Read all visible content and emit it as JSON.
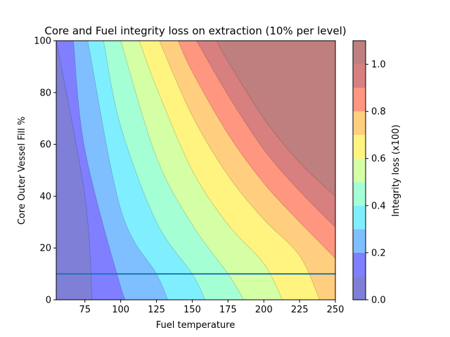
{
  "chart_data": {
    "type": "contourf",
    "title": "Core and Fuel integrity loss on extraction (10% per level)",
    "xlabel": "Fuel temperature",
    "ylabel": "Core Outer Vessel Fill %",
    "xlim": [
      55,
      250
    ],
    "ylim": [
      0,
      100
    ],
    "x_ticks": [
      75,
      100,
      125,
      150,
      175,
      200,
      225,
      250
    ],
    "y_ticks": [
      0,
      20,
      40,
      60,
      80,
      100
    ],
    "colorbar": {
      "label": "Integrity loss (x100)",
      "ticks": [
        0.0,
        0.2,
        0.4,
        0.6,
        0.8,
        1.0
      ],
      "tick_labels": [
        "0.0",
        "0.2",
        "0.4",
        "0.6",
        "0.8",
        "1.0"
      ],
      "levels": [
        0.0,
        0.1,
        0.2,
        0.3,
        0.4,
        0.5,
        0.6,
        0.7,
        0.8,
        0.9,
        1.0,
        1.1
      ],
      "colors": [
        "#7f7fd8",
        "#7f7fff",
        "#7fbfff",
        "#7fefff",
        "#a5ffd5",
        "#d5ffa5",
        "#fff47f",
        "#ffcf7f",
        "#ff967f",
        "#d87f7f",
        "#bf7f7f"
      ]
    },
    "contour_boundaries": [
      {
        "level": 0.1,
        "points": [
          [
            55,
            100
          ],
          [
            75,
            40
          ],
          [
            80,
            0
          ]
        ]
      },
      {
        "level": 0.2,
        "points": [
          [
            67,
            100
          ],
          [
            75,
            58
          ],
          [
            100,
            5
          ],
          [
            106,
            0
          ]
        ]
      },
      {
        "level": 0.3,
        "points": [
          [
            77,
            100
          ],
          [
            100,
            35
          ],
          [
            125,
            10
          ],
          [
            133,
            0
          ]
        ]
      },
      {
        "level": 0.4,
        "points": [
          [
            88,
            100
          ],
          [
            100,
            67
          ],
          [
            125,
            30
          ],
          [
            150,
            10
          ],
          [
            159,
            0
          ]
        ]
      },
      {
        "level": 0.5,
        "points": [
          [
            100,
            100
          ],
          [
            125,
            55
          ],
          [
            150,
            29
          ],
          [
            175,
            10
          ],
          [
            186,
            0
          ]
        ]
      },
      {
        "level": 0.6,
        "points": [
          [
            113,
            100
          ],
          [
            125,
            82
          ],
          [
            150,
            50
          ],
          [
            175,
            29
          ],
          [
            200,
            14
          ],
          [
            213,
            0
          ]
        ]
      },
      {
        "level": 0.7,
        "points": [
          [
            127,
            100
          ],
          [
            150,
            71
          ],
          [
            175,
            48
          ],
          [
            200,
            31
          ],
          [
            225,
            17
          ],
          [
            239,
            0
          ]
        ]
      },
      {
        "level": 0.8,
        "points": [
          [
            140,
            100
          ],
          [
            150,
            88
          ],
          [
            175,
            64
          ],
          [
            200,
            45
          ],
          [
            225,
            30
          ],
          [
            250,
            16
          ]
        ]
      },
      {
        "level": 0.9,
        "points": [
          [
            153,
            100
          ],
          [
            175,
            79
          ],
          [
            200,
            58
          ],
          [
            225,
            42
          ],
          [
            250,
            28
          ]
        ]
      },
      {
        "level": 1.0,
        "points": [
          [
            167,
            100
          ],
          [
            175,
            92
          ],
          [
            200,
            70
          ],
          [
            225,
            53
          ],
          [
            250,
            40
          ]
        ]
      }
    ],
    "horizontal_line": {
      "y": 10,
      "color": "#1f77b4"
    }
  }
}
